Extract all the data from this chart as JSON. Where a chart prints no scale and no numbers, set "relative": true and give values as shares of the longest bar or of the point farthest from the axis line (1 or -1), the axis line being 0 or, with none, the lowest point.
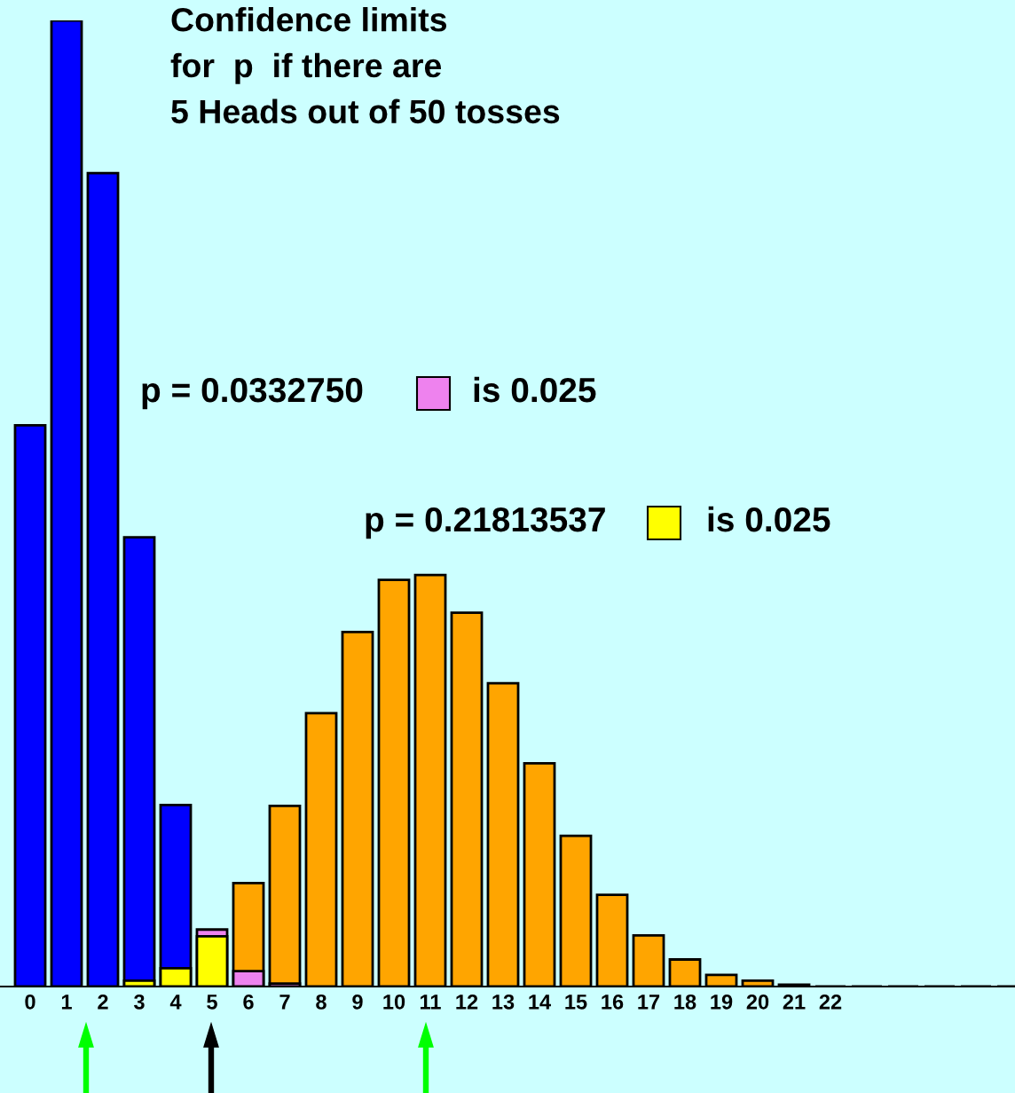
{
  "chart_data": {
    "type": "bar",
    "relative": true,
    "title": "Confidence limits\nfor  p  if there are\n5 Heads out of 50 tosses",
    "categories": [
      "0",
      "1",
      "2",
      "3",
      "4",
      "5",
      "6",
      "7",
      "8",
      "9",
      "10",
      "11",
      "12",
      "13",
      "14",
      "15",
      "16",
      "17",
      "18",
      "19",
      "20",
      "21",
      "22",
      null,
      null,
      null,
      null,
      null
    ],
    "series": [
      {
        "values": [
          0.581,
          1,
          0.842,
          0.465,
          0.188,
          0.059,
          0.016,
          0.003,
          null,
          null,
          null,
          null,
          null,
          null,
          null,
          null,
          null,
          null,
          null,
          null,
          null,
          null,
          null,
          null,
          null,
          null,
          null,
          null
        ],
        "colors": [
          "#0000ff",
          "#0000ff",
          "#0000ff",
          "#0000ff",
          "#0000ff",
          "#ee82ee",
          "#ee82ee",
          "#ee82ee",
          "#ee82ee",
          "#ee82ee",
          "#ee82ee",
          "#ee82ee",
          "#ee82ee",
          "#ee82ee",
          "#ee82ee",
          "#ee82ee",
          "#ee82ee",
          "#ee82ee",
          "#ee82ee",
          "#ee82ee",
          "#ee82ee",
          "#ee82ee",
          "#ee82ee",
          "#ee82ee",
          "#ee82ee",
          "#ee82ee",
          "#ee82ee",
          "#ee82ee"
        ]
      },
      {
        "values": [
          null,
          null,
          null,
          0.006,
          0.019,
          0.052,
          0.107,
          0.187,
          0.283,
          0.367,
          0.421,
          0.426,
          0.387,
          0.314,
          0.231,
          0.156,
          0.095,
          0.053,
          0.028,
          0.012,
          0.006,
          0.002,
          0,
          0,
          0,
          0,
          0,
          0
        ],
        "colors": [
          "#ffff00",
          "#ffff00",
          "#ffff00",
          "#ffff00",
          "#ffff00",
          "#ffff00",
          "#ffa500",
          "#ffa500",
          "#ffa500",
          "#ffa500",
          "#ffa500",
          "#ffa500",
          "#ffa500",
          "#ffa500",
          "#ffa500",
          "#ffa500",
          "#ffa500",
          "#ffa500",
          "#ffa500",
          "#ffa500",
          "#ffa500",
          "#ffa500",
          "#000000",
          "#000000",
          "#000000",
          "#000000",
          "#000000",
          "#000000"
        ]
      }
    ],
    "annotations": [
      "p = 0.0332750",
      "is 0.025",
      "p = 0.21813537",
      "is 0.025"
    ]
  }
}
